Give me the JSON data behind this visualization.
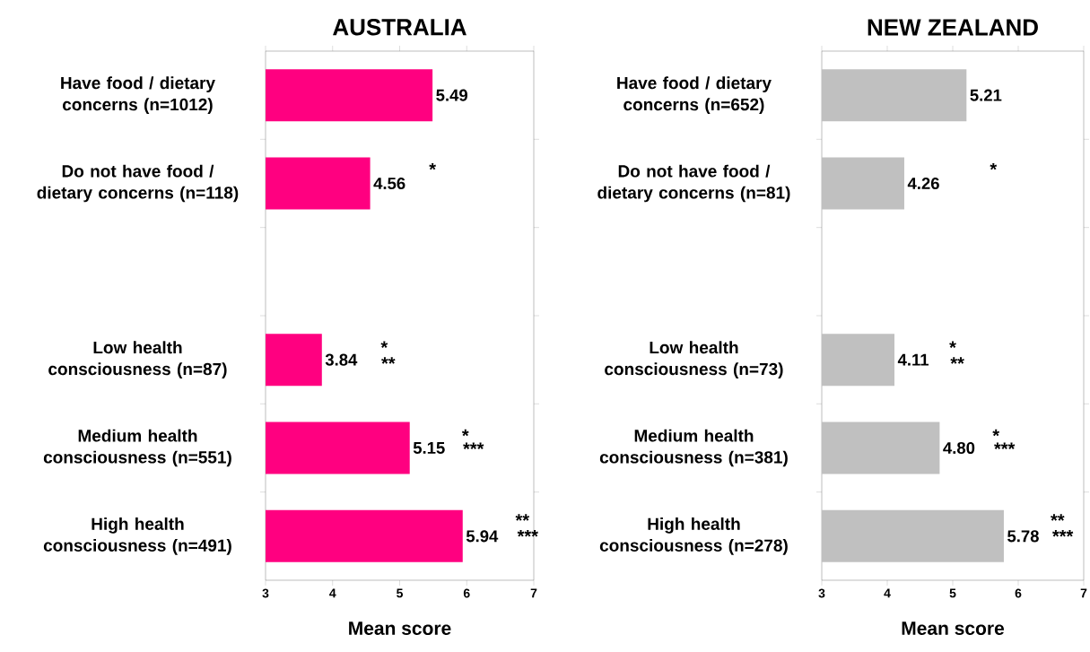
{
  "chart_data": [
    {
      "type": "bar",
      "orientation": "horizontal",
      "title": "AUSTRALIA",
      "xlabel": "Mean score",
      "color": "#ff0080",
      "categories": [
        "Have food / dietary concerns (n=1012)",
        "Do not have food / dietary concerns (n=118)",
        null,
        "Low health consciousness (n=87)",
        "Medium health consciousness (n=551)",
        "High health consciousness (n=491)"
      ],
      "values": [
        5.49,
        4.56,
        null,
        3.84,
        5.15,
        5.94
      ],
      "value_labels": [
        "5.49",
        "4.56",
        null,
        "3.84",
        "5.15",
        "5.94"
      ],
      "xlim": [
        3,
        7
      ],
      "xticks": [
        3,
        4,
        5,
        6,
        7
      ],
      "annotations": [
        "*",
        "*",
        "**",
        "*",
        "***",
        "**",
        "***"
      ]
    },
    {
      "type": "bar",
      "orientation": "horizontal",
      "title": "NEW ZEALAND",
      "xlabel": "Mean score",
      "color": "#c0c0c0",
      "categories": [
        "Have food / dietary concerns (n=652)",
        "Do not have food / dietary concerns (n=81)",
        null,
        "Low health consciousness (n=73)",
        "Medium health consciousness (n=381)",
        "High health consciousness (n=278)"
      ],
      "values": [
        5.21,
        4.26,
        null,
        4.11,
        4.8,
        5.78
      ],
      "value_labels": [
        "5.21",
        "4.26",
        null,
        "4.11",
        "4.80",
        "5.78"
      ],
      "xlim": [
        3,
        7
      ],
      "xticks": [
        3,
        4,
        5,
        6,
        7
      ],
      "annotations": [
        "*",
        "*",
        "**",
        "*",
        "***",
        "**",
        "***"
      ]
    }
  ]
}
